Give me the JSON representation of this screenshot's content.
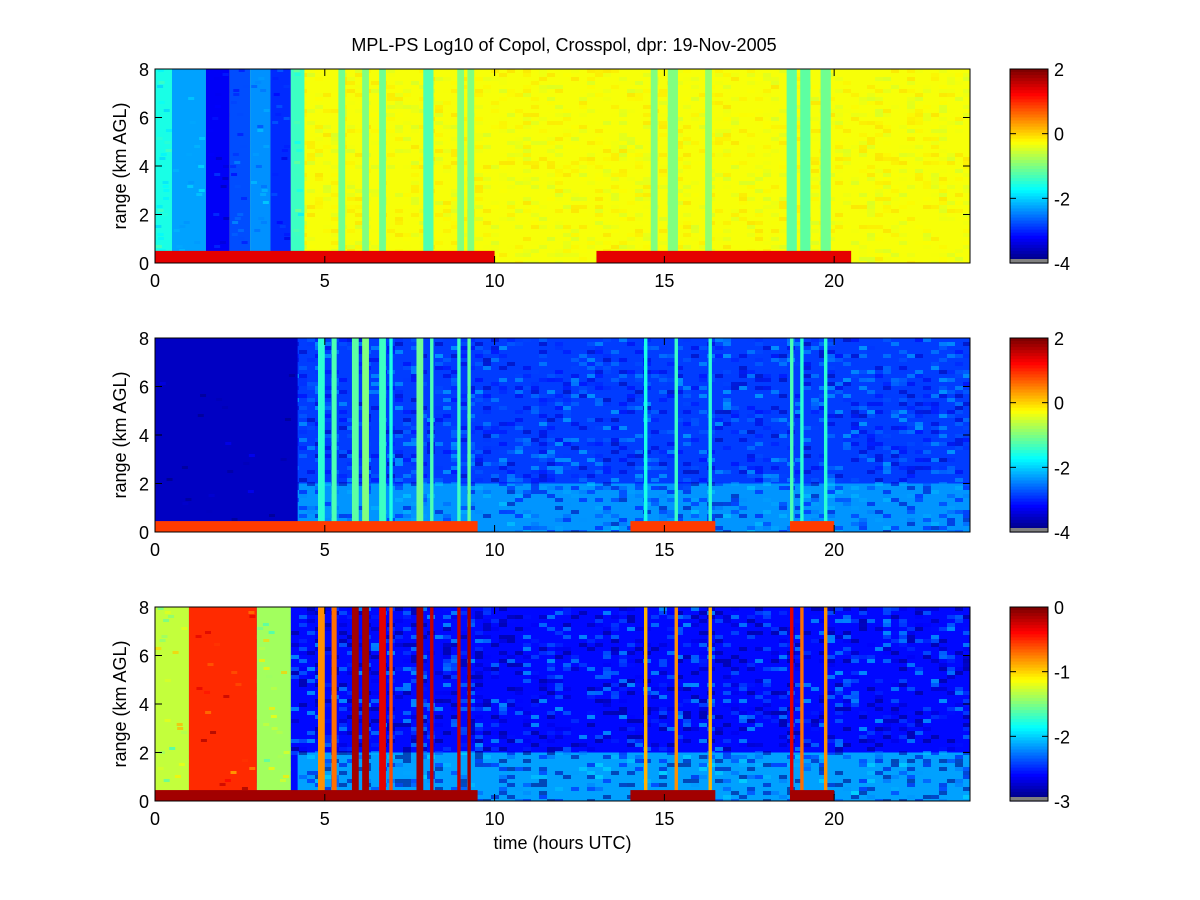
{
  "figure": {
    "title": "MPL-PS Log10 of Copol, Crosspol, dpr: 19-Nov-2005"
  },
  "chart_data": [
    {
      "type": "heatmap",
      "name": "copol",
      "xlabel": "",
      "ylabel": "range (km AGL)",
      "xlim": [
        0,
        24
      ],
      "ylim": [
        0,
        8
      ],
      "x_ticks": [
        "0",
        "5",
        "10",
        "15",
        "20"
      ],
      "y_ticks": [
        "0",
        "2",
        "4",
        "6",
        "8"
      ],
      "colorbar": {
        "min": -4,
        "max": 2,
        "ticks": [
          "2",
          "0",
          "-2",
          "-4"
        ]
      },
      "colormap": "jet",
      "background_value": -0.3,
      "noise": 0.15,
      "surface_layer": {
        "top_km": 0.5,
        "value": 1.4,
        "hours": [
          [
            0,
            10
          ],
          [
            13,
            20.5
          ]
        ]
      },
      "bands": [
        {
          "x0": 0.0,
          "x1": 0.5,
          "value": -1.6
        },
        {
          "x0": 0.5,
          "x1": 1.5,
          "value": -2.3
        },
        {
          "x0": 1.5,
          "x1": 2.2,
          "value": -3.3
        },
        {
          "x0": 2.2,
          "x1": 2.8,
          "value": -2.8
        },
        {
          "x0": 2.8,
          "x1": 3.4,
          "value": -2.4
        },
        {
          "x0": 3.4,
          "x1": 4.0,
          "value": -3.0
        },
        {
          "x0": 4.0,
          "x1": 4.4,
          "value": -1.4
        },
        {
          "x0": 5.4,
          "x1": 5.6,
          "value": -1.1
        },
        {
          "x0": 6.1,
          "x1": 6.3,
          "value": -1.0
        },
        {
          "x0": 6.6,
          "x1": 6.8,
          "value": -1.1
        },
        {
          "x0": 7.9,
          "x1": 8.2,
          "value": -1.3
        },
        {
          "x0": 8.9,
          "x1": 9.1,
          "value": -1.0
        },
        {
          "x0": 9.2,
          "x1": 9.4,
          "value": -1.0
        },
        {
          "x0": 14.6,
          "x1": 14.8,
          "value": -1.0
        },
        {
          "x0": 15.1,
          "x1": 15.4,
          "value": -1.0
        },
        {
          "x0": 16.2,
          "x1": 16.4,
          "value": -0.9
        },
        {
          "x0": 18.6,
          "x1": 18.9,
          "value": -1.2
        },
        {
          "x0": 19.0,
          "x1": 19.3,
          "value": -1.2
        },
        {
          "x0": 19.6,
          "x1": 19.9,
          "value": -1.1
        }
      ]
    },
    {
      "type": "heatmap",
      "name": "crosspol",
      "xlabel": "",
      "ylabel": "range (km AGL)",
      "xlim": [
        0,
        24
      ],
      "ylim": [
        0,
        8
      ],
      "x_ticks": [
        "0",
        "5",
        "10",
        "15",
        "20"
      ],
      "y_ticks": [
        "0",
        "2",
        "4",
        "6",
        "8"
      ],
      "colorbar": {
        "min": -4,
        "max": 2,
        "ticks": [
          "2",
          "0",
          "-2",
          "-4"
        ]
      },
      "colormap": "jet",
      "background_value": -2.9,
      "noise": 0.45,
      "surface_layer": {
        "top_km": 0.45,
        "value": 0.9,
        "hours": [
          [
            0,
            9.5
          ],
          [
            14,
            16.5
          ],
          [
            18.7,
            20
          ]
        ]
      },
      "low_level_value": -2.2,
      "bands": [
        {
          "x0": 0.0,
          "x1": 4.2,
          "value": -3.6
        },
        {
          "x0": 4.8,
          "x1": 5.0,
          "value": -1.5
        },
        {
          "x0": 5.2,
          "x1": 5.35,
          "value": -1.3
        },
        {
          "x0": 5.8,
          "x1": 6.0,
          "value": -1.2
        },
        {
          "x0": 6.1,
          "x1": 6.3,
          "value": -1.0
        },
        {
          "x0": 6.6,
          "x1": 6.8,
          "value": -1.4
        },
        {
          "x0": 6.9,
          "x1": 7.0,
          "value": -1.6
        },
        {
          "x0": 7.7,
          "x1": 7.9,
          "value": -1.1
        },
        {
          "x0": 8.1,
          "x1": 8.2,
          "value": -1.3
        },
        {
          "x0": 8.9,
          "x1": 9.0,
          "value": -1.4
        },
        {
          "x0": 9.2,
          "x1": 9.3,
          "value": -1.2
        },
        {
          "x0": 14.4,
          "x1": 14.5,
          "value": -1.6
        },
        {
          "x0": 15.3,
          "x1": 15.4,
          "value": -1.4
        },
        {
          "x0": 16.3,
          "x1": 16.4,
          "value": -1.5
        },
        {
          "x0": 18.7,
          "x1": 18.8,
          "value": -1.3
        },
        {
          "x0": 19.0,
          "x1": 19.1,
          "value": -1.5
        },
        {
          "x0": 19.7,
          "x1": 19.8,
          "value": -1.5
        }
      ]
    },
    {
      "type": "heatmap",
      "name": "dpr",
      "xlabel": "time (hours UTC)",
      "ylabel": "range (km AGL)",
      "xlim": [
        0,
        24
      ],
      "ylim": [
        0,
        8
      ],
      "x_ticks": [
        "0",
        "5",
        "10",
        "15",
        "20"
      ],
      "y_ticks": [
        "0",
        "2",
        "4",
        "6",
        "8"
      ],
      "colorbar": {
        "min": -3,
        "max": 0,
        "ticks": [
          "0",
          "-1",
          "-2",
          "-3"
        ]
      },
      "colormap": "jet",
      "background_value": -2.6,
      "noise": 0.35,
      "surface_layer": {
        "top_km": 0.45,
        "value": -0.1,
        "hours": [
          [
            0,
            9.5
          ],
          [
            14,
            16.5
          ],
          [
            18.7,
            20
          ]
        ]
      },
      "low_level_value": -2.0,
      "bands": [
        {
          "x0": 0.0,
          "x1": 1.0,
          "value": -1.3
        },
        {
          "x0": 1.0,
          "x1": 3.0,
          "value": -0.5
        },
        {
          "x0": 3.0,
          "x1": 4.0,
          "value": -1.4
        },
        {
          "x0": 4.8,
          "x1": 5.0,
          "value": -0.8
        },
        {
          "x0": 5.2,
          "x1": 5.35,
          "value": -0.7
        },
        {
          "x0": 5.8,
          "x1": 6.0,
          "value": -0.1
        },
        {
          "x0": 6.1,
          "x1": 6.3,
          "value": -0.1
        },
        {
          "x0": 6.6,
          "x1": 6.8,
          "value": -0.3
        },
        {
          "x0": 6.9,
          "x1": 7.0,
          "value": -0.6
        },
        {
          "x0": 7.7,
          "x1": 7.9,
          "value": -0.1
        },
        {
          "x0": 8.1,
          "x1": 8.2,
          "value": -0.2
        },
        {
          "x0": 8.9,
          "x1": 9.0,
          "value": -0.2
        },
        {
          "x0": 9.2,
          "x1": 9.3,
          "value": -0.1
        },
        {
          "x0": 14.4,
          "x1": 14.5,
          "value": -0.9
        },
        {
          "x0": 15.3,
          "x1": 15.4,
          "value": -0.8
        },
        {
          "x0": 16.3,
          "x1": 16.4,
          "value": -0.9
        },
        {
          "x0": 18.7,
          "x1": 18.8,
          "value": -0.3
        },
        {
          "x0": 19.0,
          "x1": 19.1,
          "value": -0.7
        },
        {
          "x0": 19.7,
          "x1": 19.8,
          "value": -0.8
        }
      ]
    }
  ]
}
